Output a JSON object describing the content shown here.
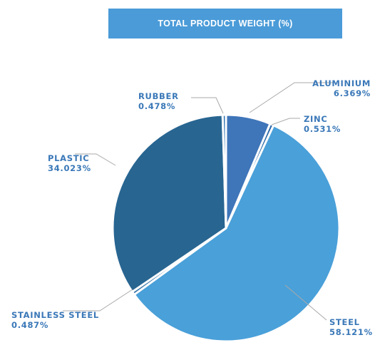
{
  "chart_data": {
    "type": "pie",
    "title": "TOTAL PRODUCT WEIGHT (%)",
    "slices": [
      {
        "label": "ALUMINIUM",
        "value": 6.369,
        "value_label": "6.369%",
        "color": "#3f75b9"
      },
      {
        "label": "ZINC",
        "value": 0.531,
        "value_label": "0.531%",
        "color": "#2b6aa8"
      },
      {
        "label": "STEEL",
        "value": 58.121,
        "value_label": "58.121%",
        "color": "#4aa0d9"
      },
      {
        "label": "STAINLESS STEEL",
        "value": 0.487,
        "value_label": "0.487%",
        "color": "#2f6ea3"
      },
      {
        "label": "PLASTIC",
        "value": 34.023,
        "value_label": "34.023%",
        "color": "#286591"
      },
      {
        "label": "RUBBER",
        "value": 0.478,
        "value_label": "0.478%",
        "color": "#3a79b6"
      }
    ],
    "legend": "none",
    "label_color": "#3a78b8",
    "title_background": "#4a9bd8"
  }
}
